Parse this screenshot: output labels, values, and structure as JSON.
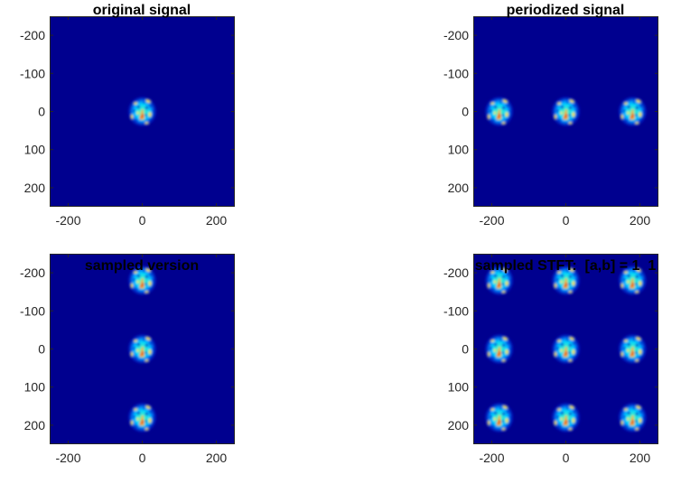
{
  "chart_data": [
    {
      "type": "heatmap",
      "title": "original signal",
      "xlim": [
        -250,
        250
      ],
      "ylim": [
        -250,
        250
      ],
      "y_direction": "reversed",
      "x_ticks": [
        -200,
        0,
        200
      ],
      "y_ticks": [
        -200,
        -100,
        0,
        100,
        200
      ],
      "x_tick_labels": [
        "-200",
        "0",
        "200"
      ],
      "y_tick_labels": [
        "-200",
        "-100",
        "0",
        "100",
        "200"
      ],
      "colormap": "jet",
      "background_color": "#00008f",
      "blob_centers": [
        [
          0,
          0
        ]
      ]
    },
    {
      "type": "heatmap",
      "title": "periodized signal",
      "xlim": [
        -250,
        250
      ],
      "ylim": [
        -250,
        250
      ],
      "y_direction": "reversed",
      "x_ticks": [
        -200,
        0,
        200
      ],
      "y_ticks": [
        -200,
        -100,
        0,
        100,
        200
      ],
      "x_tick_labels": [
        "-200",
        "0",
        "200"
      ],
      "y_tick_labels": [
        "-200",
        "-100",
        "0",
        "100",
        "200"
      ],
      "colormap": "jet",
      "background_color": "#00008f",
      "blob_centers": [
        [
          -180,
          0
        ],
        [
          0,
          0
        ],
        [
          180,
          0
        ]
      ]
    },
    {
      "type": "heatmap",
      "title": "sampled version",
      "xlim": [
        -250,
        250
      ],
      "ylim": [
        -250,
        250
      ],
      "y_direction": "reversed",
      "x_ticks": [
        -200,
        0,
        200
      ],
      "y_ticks": [
        -200,
        -100,
        0,
        100,
        200
      ],
      "x_tick_labels": [
        "-200",
        "0",
        "200"
      ],
      "y_tick_labels": [
        "-200",
        "-100",
        "0",
        "100",
        "200"
      ],
      "colormap": "jet",
      "background_color": "#00008f",
      "blob_centers": [
        [
          0,
          -180
        ],
        [
          0,
          0
        ],
        [
          0,
          180
        ]
      ]
    },
    {
      "type": "heatmap",
      "title": "sampled STFT:  [a,b] = 1  1",
      "xlim": [
        -250,
        250
      ],
      "ylim": [
        -250,
        250
      ],
      "y_direction": "reversed",
      "x_ticks": [
        -200,
        0,
        200
      ],
      "y_ticks": [
        -200,
        -100,
        0,
        100,
        200
      ],
      "x_tick_labels": [
        "-200",
        "0",
        "200"
      ],
      "y_tick_labels": [
        "-200",
        "-100",
        "0",
        "100",
        "200"
      ],
      "colormap": "jet",
      "background_color": "#00008f",
      "blob_centers": [
        [
          -180,
          -180
        ],
        [
          0,
          -180
        ],
        [
          180,
          -180
        ],
        [
          -180,
          0
        ],
        [
          0,
          0
        ],
        [
          180,
          0
        ],
        [
          -180,
          180
        ],
        [
          0,
          180
        ],
        [
          180,
          180
        ]
      ]
    }
  ]
}
